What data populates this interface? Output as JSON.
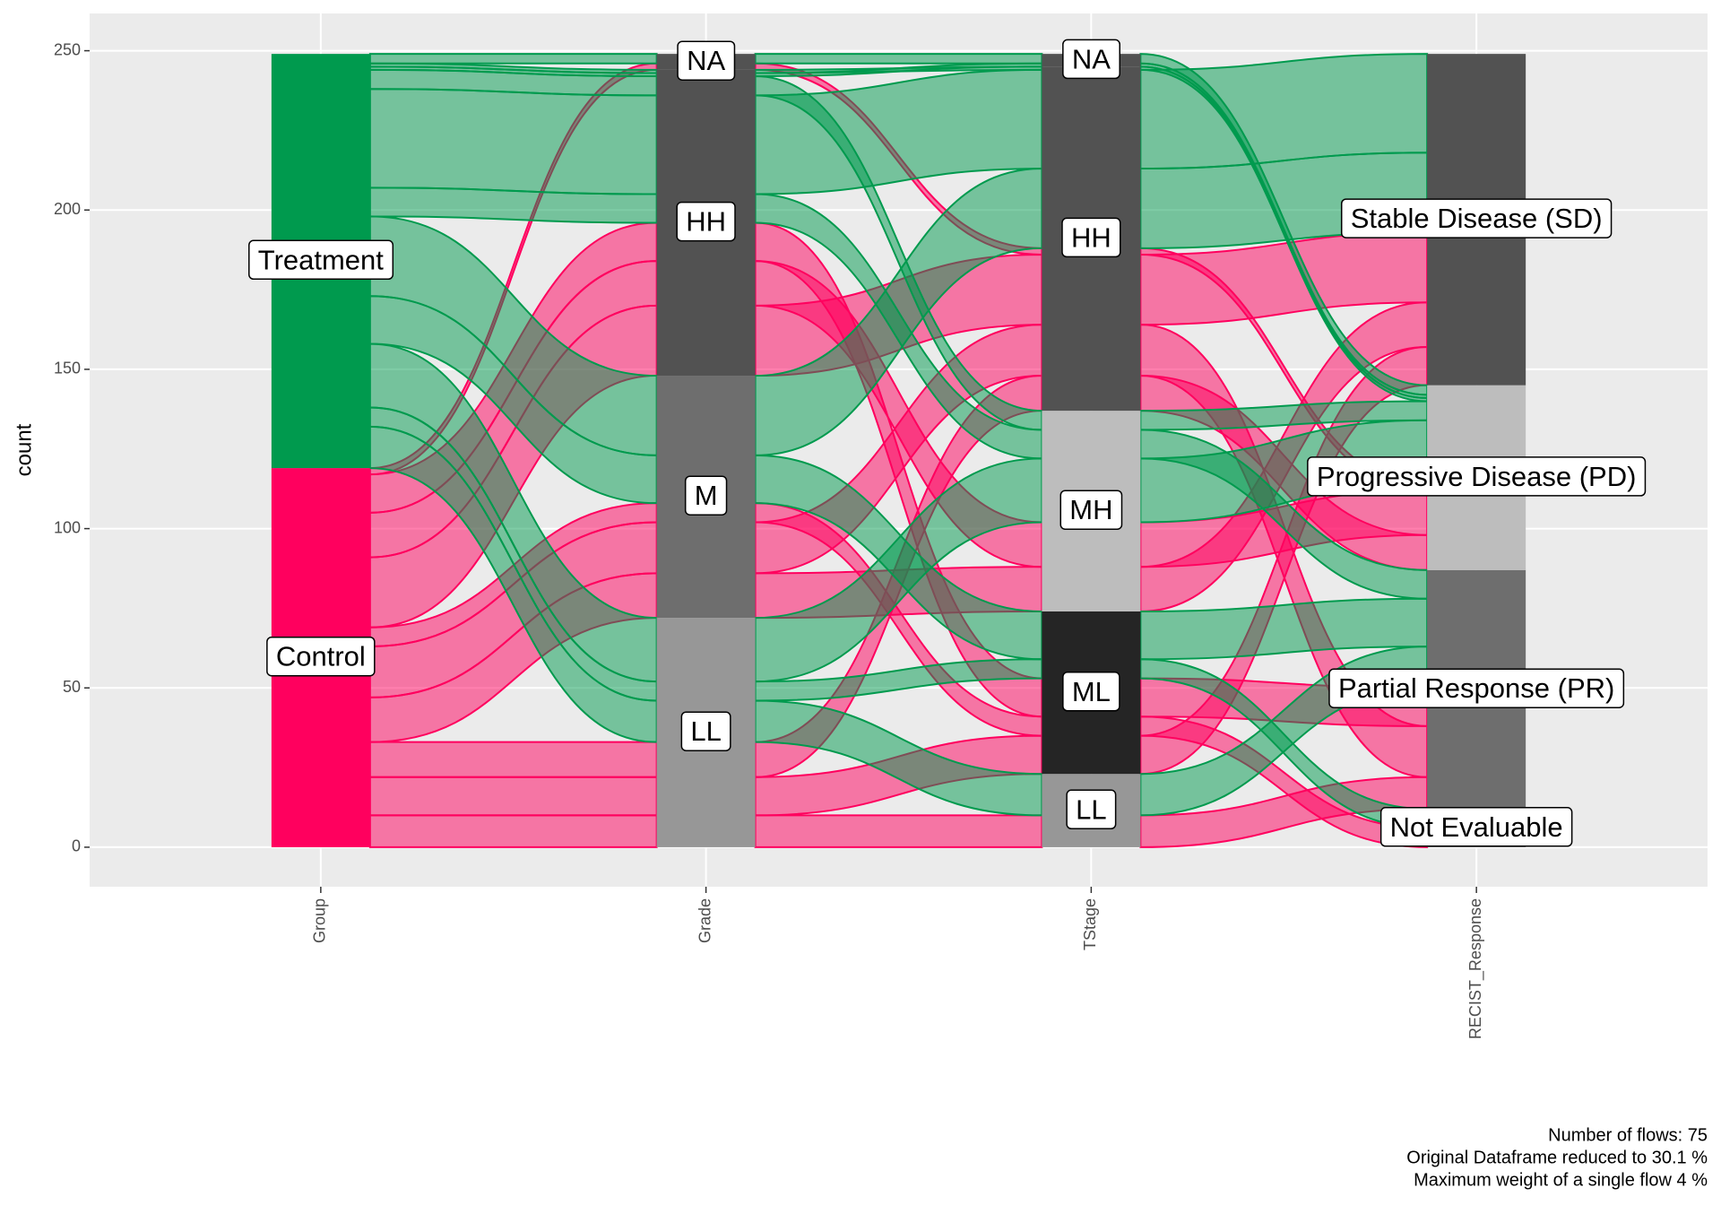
{
  "chart_data": {
    "type": "alluvial",
    "y_label": "count",
    "ylim": [
      -12.4,
      261.7
    ],
    "yticks": [
      0,
      50,
      100,
      150,
      200,
      250
    ],
    "grid": true,
    "flow_opacity": 0.5,
    "axes": [
      {
        "name": "Group",
        "strata": [
          {
            "name": "Control",
            "count": 119,
            "color": "#ff005e"
          },
          {
            "name": "Treatment",
            "count": 130,
            "color": "#009a4e"
          }
        ]
      },
      {
        "name": "Grade",
        "strata": [
          {
            "name": "LL",
            "count": 72,
            "color": "#979797"
          },
          {
            "name": "M",
            "count": 76,
            "color": "#6e6e6e"
          },
          {
            "name": "HH",
            "count": 96,
            "color": "#525252"
          },
          {
            "name": "NA",
            "count": 5,
            "color": "#525252"
          }
        ]
      },
      {
        "name": "TStage",
        "strata": [
          {
            "name": "LL",
            "count": 23,
            "color": "#979797"
          },
          {
            "name": "ML",
            "count": 51,
            "color": "#252525"
          },
          {
            "name": "MH",
            "count": 63,
            "color": "#bdbdbd"
          },
          {
            "name": "HH",
            "count": 108,
            "color": "#525252"
          },
          {
            "name": "NA",
            "count": 4,
            "color": "#525252"
          }
        ]
      },
      {
        "name": "RECIST_Response",
        "strata": [
          {
            "name": "Not Evaluable",
            "count": 12,
            "color": "#979797"
          },
          {
            "name": "Partial Response (PR)",
            "count": 75,
            "color": "#6e6e6e"
          },
          {
            "name": "Progressive Disease (PD)",
            "count": 58,
            "color": "#bdbdbd"
          },
          {
            "name": "Stable Disease (SD)",
            "count": 104,
            "color": "#525252"
          }
        ]
      }
    ],
    "flows": [
      {
        "path": [
          "Control",
          "LL",
          "LL",
          "Partial Response (PR)"
        ],
        "count": 10
      },
      {
        "path": [
          "Control",
          "LL",
          "ML",
          "Stable Disease (SD)"
        ],
        "count": 12
      },
      {
        "path": [
          "Control",
          "LL",
          "HH",
          "Progressive Disease (PD)"
        ],
        "count": 11
      },
      {
        "path": [
          "Control",
          "M",
          "MH",
          "Stable Disease (SD)"
        ],
        "count": 14
      },
      {
        "path": [
          "Control",
          "M",
          "HH",
          "Partial Response (PR)"
        ],
        "count": 16
      },
      {
        "path": [
          "Control",
          "M",
          "ML",
          "Not Evaluable"
        ],
        "count": 6
      },
      {
        "path": [
          "Control",
          "HH",
          "HH",
          "Stable Disease (SD)"
        ],
        "count": 22
      },
      {
        "path": [
          "Control",
          "HH",
          "MH",
          "Progressive Disease (PD)"
        ],
        "count": 14
      },
      {
        "path": [
          "Control",
          "HH",
          "ML",
          "Partial Response (PR)"
        ],
        "count": 12
      },
      {
        "path": [
          "Control",
          "NA",
          "HH",
          "Progressive Disease (PD)"
        ],
        "count": 2
      },
      {
        "path": [
          "Treatment",
          "LL",
          "LL",
          "Partial Response (PR)"
        ],
        "count": 13
      },
      {
        "path": [
          "Treatment",
          "LL",
          "ML",
          "Not Evaluable"
        ],
        "count": 6
      },
      {
        "path": [
          "Treatment",
          "LL",
          "MH",
          "Progressive Disease (PD)"
        ],
        "count": 20
      },
      {
        "path": [
          "Treatment",
          "M",
          "ML",
          "Partial Response (PR)"
        ],
        "count": 15
      },
      {
        "path": [
          "Treatment",
          "M",
          "HH",
          "Stable Disease (SD)"
        ],
        "count": 25
      },
      {
        "path": [
          "Treatment",
          "HH",
          "MH",
          "Partial Response (PR)"
        ],
        "count": 9
      },
      {
        "path": [
          "Treatment",
          "HH",
          "HH",
          "Stable Disease (SD)"
        ],
        "count": 31
      },
      {
        "path": [
          "Treatment",
          "HH",
          "MH",
          "Progressive Disease (PD)"
        ],
        "count": 6
      },
      {
        "path": [
          "Treatment",
          "HH",
          "NA",
          "Progressive Disease (PD)"
        ],
        "count": 1
      },
      {
        "path": [
          "Treatment",
          "HH",
          "HH",
          "Progressive Disease (PD)"
        ],
        "count": 1
      },
      {
        "path": [
          "Treatment",
          "NA",
          "NA",
          "Progressive Disease (PD)"
        ],
        "count": 3
      }
    ],
    "notes": [
      "Number of flows: 75",
      "Original Dataframe reduced to 30.1 %",
      "Maximum weight of a single flow 4 %"
    ]
  }
}
